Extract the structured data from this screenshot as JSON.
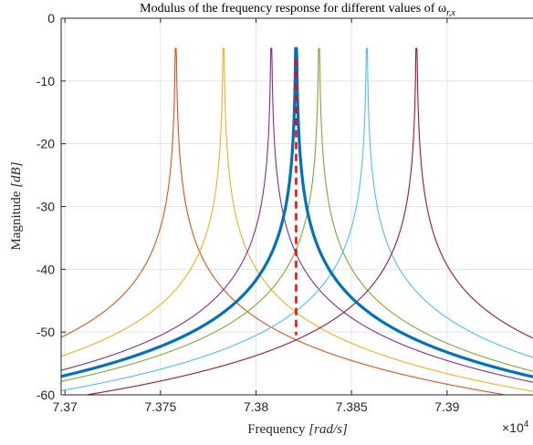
{
  "chart_data": {
    "type": "line",
    "title": "Modulus of the frequency response for different values of ω",
    "title_subscript": "r,x",
    "xlabel_text": "Frequency ",
    "xlabel_unit": "[rad/s]",
    "ylabel_text": "Magnitude ",
    "ylabel_unit": "[dB]",
    "x_multiplier_base": "×10",
    "x_multiplier_exp": "4",
    "xlim": [
      7.3698,
      7.3945
    ],
    "ylim": [
      -60,
      0
    ],
    "x_ticks": [
      7.37,
      7.375,
      7.38,
      7.385,
      7.39
    ],
    "x_tick_labels": [
      "7.37",
      "7.375",
      "7.38",
      "7.385",
      "7.39"
    ],
    "y_ticks": [
      0,
      -10,
      -20,
      -30,
      -40,
      -50,
      -60
    ],
    "y_tick_labels": [
      "0",
      "-10",
      "-20",
      "-30",
      "-40",
      "-50",
      "-60"
    ],
    "grid": true,
    "curve_model": {
      "peak_db": -4.8,
      "slope_db_per_decade": 20
    },
    "series": [
      {
        "peak": 7.3758,
        "color": "#D95319",
        "bold": false
      },
      {
        "peak": 7.3783,
        "color": "#EDB120",
        "bold": false
      },
      {
        "peak": 7.3808,
        "color": "#7E2F8E",
        "bold": false
      },
      {
        "peak": 7.3833,
        "color": "#77AC30",
        "bold": false
      },
      {
        "peak": 7.3858,
        "color": "#4DBEEE",
        "bold": false
      },
      {
        "peak": 7.3884,
        "color": "#A2142F",
        "bold": false
      },
      {
        "peak": 7.3821,
        "color": "#0072BD",
        "bold": true
      }
    ],
    "marker_line": {
      "x": 7.3821,
      "y_top": -6.5,
      "y_bottom": -50.5,
      "color": "#FF0000",
      "style": "dashed"
    }
  }
}
